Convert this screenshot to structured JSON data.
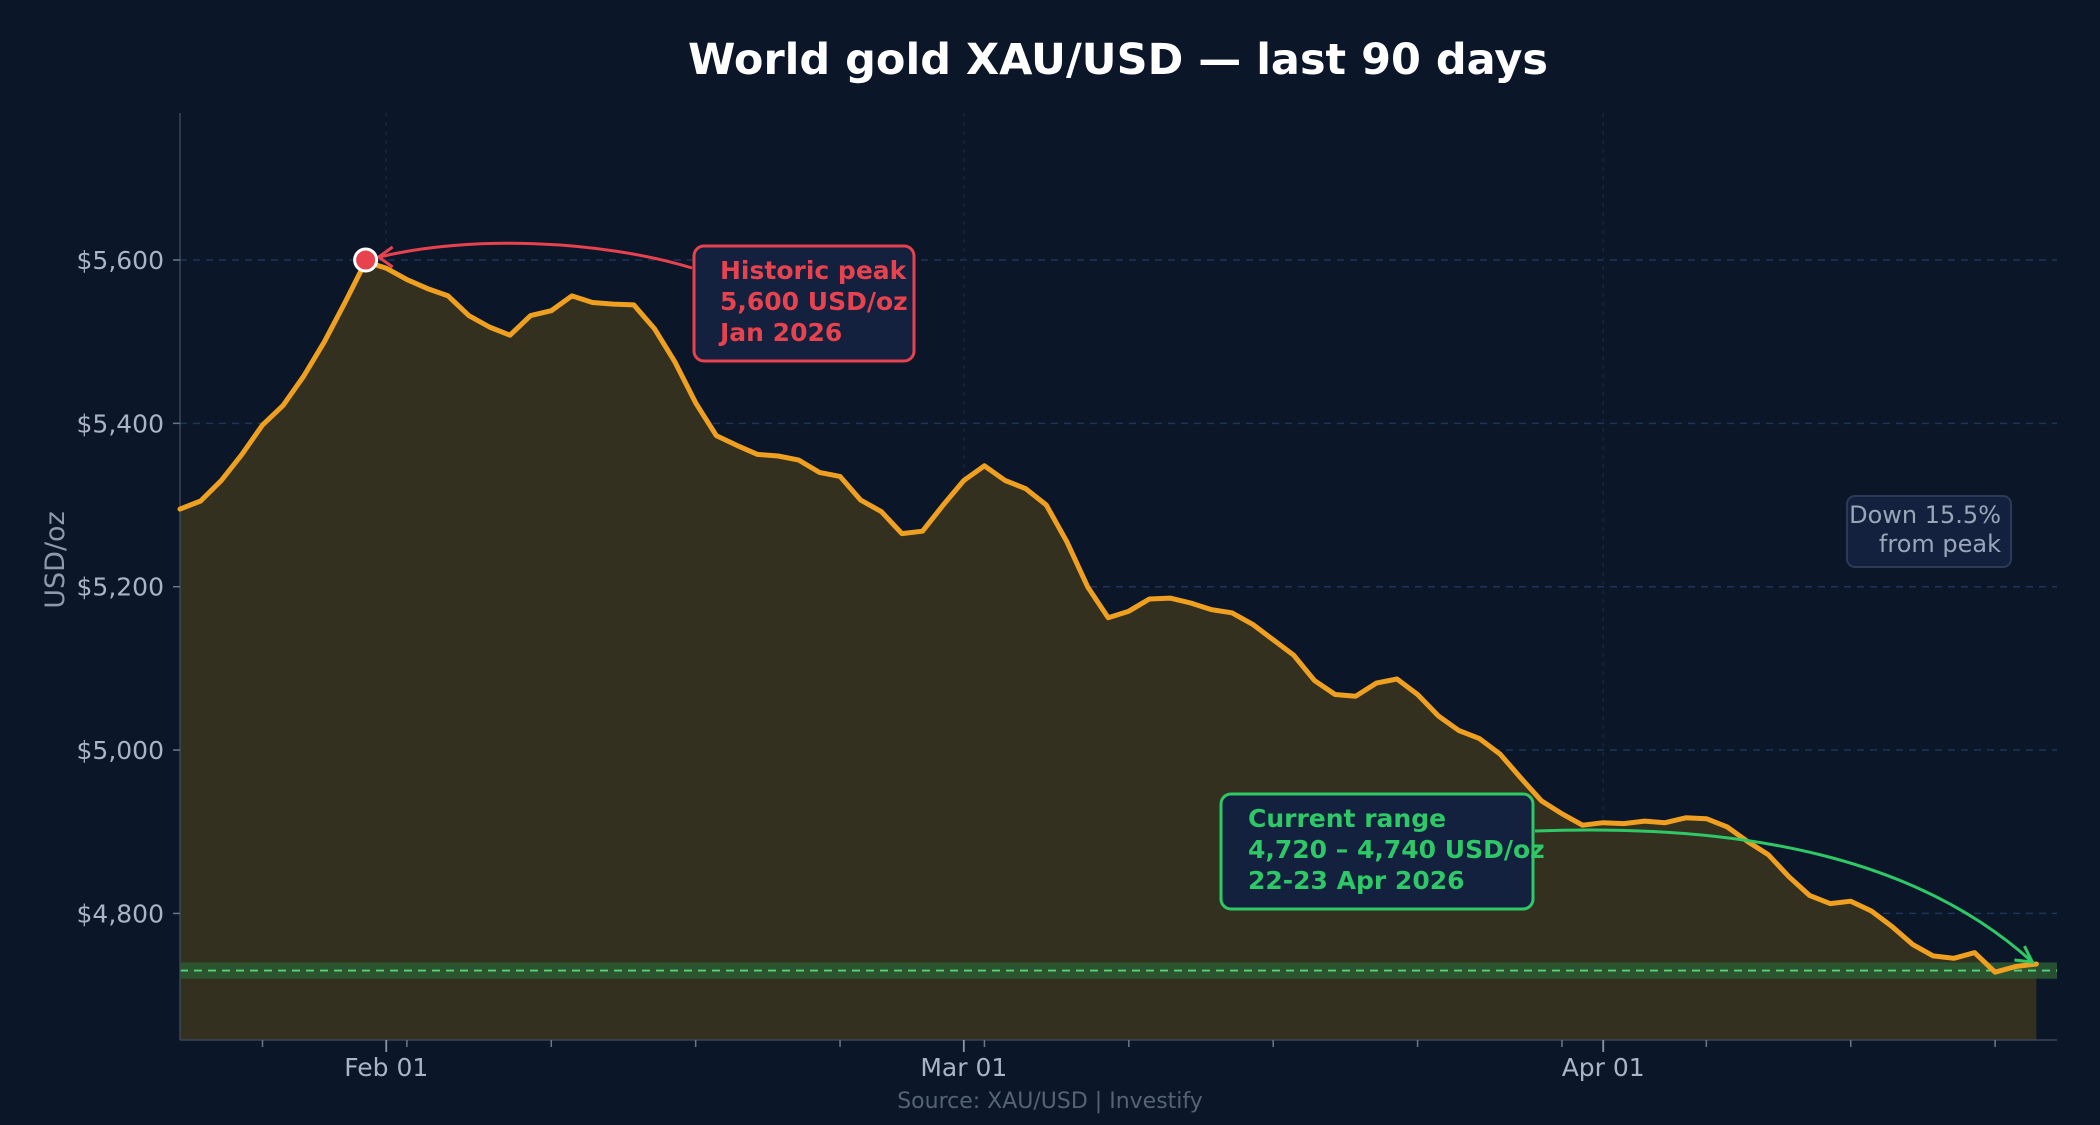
{
  "chart_data": {
    "type": "line",
    "title": "World gold XAU/USD — last 90 days",
    "ylabel": "USD/oz",
    "xlabel": "",
    "source": "Source: XAU/USD  |  Investify",
    "ylim": [
      4645,
      5780
    ],
    "xlim": [
      "2026-01-22",
      "2026-04-23"
    ],
    "x_ticks": [
      {
        "date": "2026-02-01",
        "label": "Feb 01"
      },
      {
        "date": "2026-03-01",
        "label": "Mar 01"
      },
      {
        "date": "2026-04-01",
        "label": "Apr 01"
      }
    ],
    "y_ticks": [
      {
        "value": 4800,
        "label": "$4,800"
      },
      {
        "value": 5000,
        "label": "$5,000"
      },
      {
        "value": 5200,
        "label": "$5,200"
      },
      {
        "value": 5400,
        "label": "$5,400"
      },
      {
        "value": 5600,
        "label": "$5,600"
      }
    ],
    "grid": true,
    "colors": {
      "line": "#f0a020",
      "area": "#34301f",
      "peak": "#e8424f",
      "range": "#2ec866",
      "neutral": "#9aa6b8",
      "background": "#0b1628"
    },
    "series": [
      {
        "points": [
          [
            "2026-01-22",
            5295
          ],
          [
            "2026-01-23",
            5305
          ],
          [
            "2026-01-24",
            5330
          ],
          [
            "2026-01-25",
            5362
          ],
          [
            "2026-01-26",
            5398
          ],
          [
            "2026-01-27",
            5422
          ],
          [
            "2026-01-28",
            5458
          ],
          [
            "2026-01-29",
            5500
          ],
          [
            "2026-01-30",
            5548
          ],
          [
            "2026-01-31",
            5598
          ],
          [
            "2026-02-01",
            5590
          ],
          [
            "2026-02-02",
            5576
          ],
          [
            "2026-02-03",
            5565
          ],
          [
            "2026-02-04",
            5556
          ],
          [
            "2026-02-05",
            5532
          ],
          [
            "2026-02-06",
            5518
          ],
          [
            "2026-02-07",
            5508
          ],
          [
            "2026-02-08",
            5532
          ],
          [
            "2026-02-09",
            5538
          ],
          [
            "2026-02-10",
            5556
          ],
          [
            "2026-02-11",
            5548
          ],
          [
            "2026-02-12",
            5546
          ],
          [
            "2026-02-13",
            5545
          ],
          [
            "2026-02-14",
            5516
          ],
          [
            "2026-02-15",
            5475
          ],
          [
            "2026-02-16",
            5425
          ],
          [
            "2026-02-17",
            5385
          ],
          [
            "2026-02-18",
            5373
          ],
          [
            "2026-02-19",
            5362
          ],
          [
            "2026-02-20",
            5360
          ],
          [
            "2026-02-21",
            5355
          ],
          [
            "2026-02-22",
            5340
          ],
          [
            "2026-02-23",
            5335
          ],
          [
            "2026-02-24",
            5306
          ],
          [
            "2026-02-25",
            5292
          ],
          [
            "2026-02-26",
            5265
          ],
          [
            "2026-02-27",
            5268
          ],
          [
            "2026-02-28",
            5300
          ],
          [
            "2026-03-01",
            5330
          ],
          [
            "2026-03-02",
            5348
          ],
          [
            "2026-03-03",
            5330
          ],
          [
            "2026-03-04",
            5320
          ],
          [
            "2026-03-05",
            5300
          ],
          [
            "2026-03-06",
            5255
          ],
          [
            "2026-03-07",
            5200
          ],
          [
            "2026-03-08",
            5162
          ],
          [
            "2026-03-09",
            5170
          ],
          [
            "2026-03-10",
            5185
          ],
          [
            "2026-03-11",
            5186
          ],
          [
            "2026-03-12",
            5180
          ],
          [
            "2026-03-13",
            5172
          ],
          [
            "2026-03-14",
            5168
          ],
          [
            "2026-03-15",
            5154
          ],
          [
            "2026-03-16",
            5135
          ],
          [
            "2026-03-17",
            5116
          ],
          [
            "2026-03-18",
            5085
          ],
          [
            "2026-03-19",
            5068
          ],
          [
            "2026-03-20",
            5066
          ],
          [
            "2026-03-21",
            5082
          ],
          [
            "2026-03-22",
            5087
          ],
          [
            "2026-03-23",
            5068
          ],
          [
            "2026-03-24",
            5042
          ],
          [
            "2026-03-25",
            5024
          ],
          [
            "2026-03-26",
            5014
          ],
          [
            "2026-03-27",
            4995
          ],
          [
            "2026-03-28",
            4966
          ],
          [
            "2026-03-29",
            4938
          ],
          [
            "2026-03-30",
            4922
          ],
          [
            "2026-03-31",
            4908
          ],
          [
            "2026-04-01",
            4911
          ],
          [
            "2026-04-02",
            4910
          ],
          [
            "2026-04-03",
            4913
          ],
          [
            "2026-04-04",
            4911
          ],
          [
            "2026-04-05",
            4917
          ],
          [
            "2026-04-06",
            4916
          ],
          [
            "2026-04-07",
            4906
          ],
          [
            "2026-04-08",
            4888
          ],
          [
            "2026-04-09",
            4872
          ],
          [
            "2026-04-10",
            4845
          ],
          [
            "2026-04-11",
            4822
          ],
          [
            "2026-04-12",
            4812
          ],
          [
            "2026-04-13",
            4815
          ],
          [
            "2026-04-14",
            4803
          ],
          [
            "2026-04-15",
            4784
          ],
          [
            "2026-04-16",
            4762
          ],
          [
            "2026-04-17",
            4748
          ],
          [
            "2026-04-18",
            4745
          ],
          [
            "2026-04-19",
            4752
          ],
          [
            "2026-04-20",
            4728
          ],
          [
            "2026-04-21",
            4735
          ],
          [
            "2026-04-22",
            4738
          ]
        ]
      }
    ],
    "reference_band": {
      "low": 4720,
      "high": 4740,
      "line": 4730
    },
    "annotations": {
      "peak": {
        "date": "2026-01-31",
        "value": 5600,
        "lines": [
          "Historic peak",
          "5,600 USD/oz",
          "Jan 2026"
        ]
      },
      "current": {
        "date": "2026-04-22",
        "value": 4738,
        "lines": [
          "Current range",
          "4,720 – 4,740 USD/oz",
          "22-23 Apr 2026"
        ]
      },
      "drawdown": {
        "lines": [
          "Down 15.5%",
          "from peak"
        ]
      }
    }
  }
}
